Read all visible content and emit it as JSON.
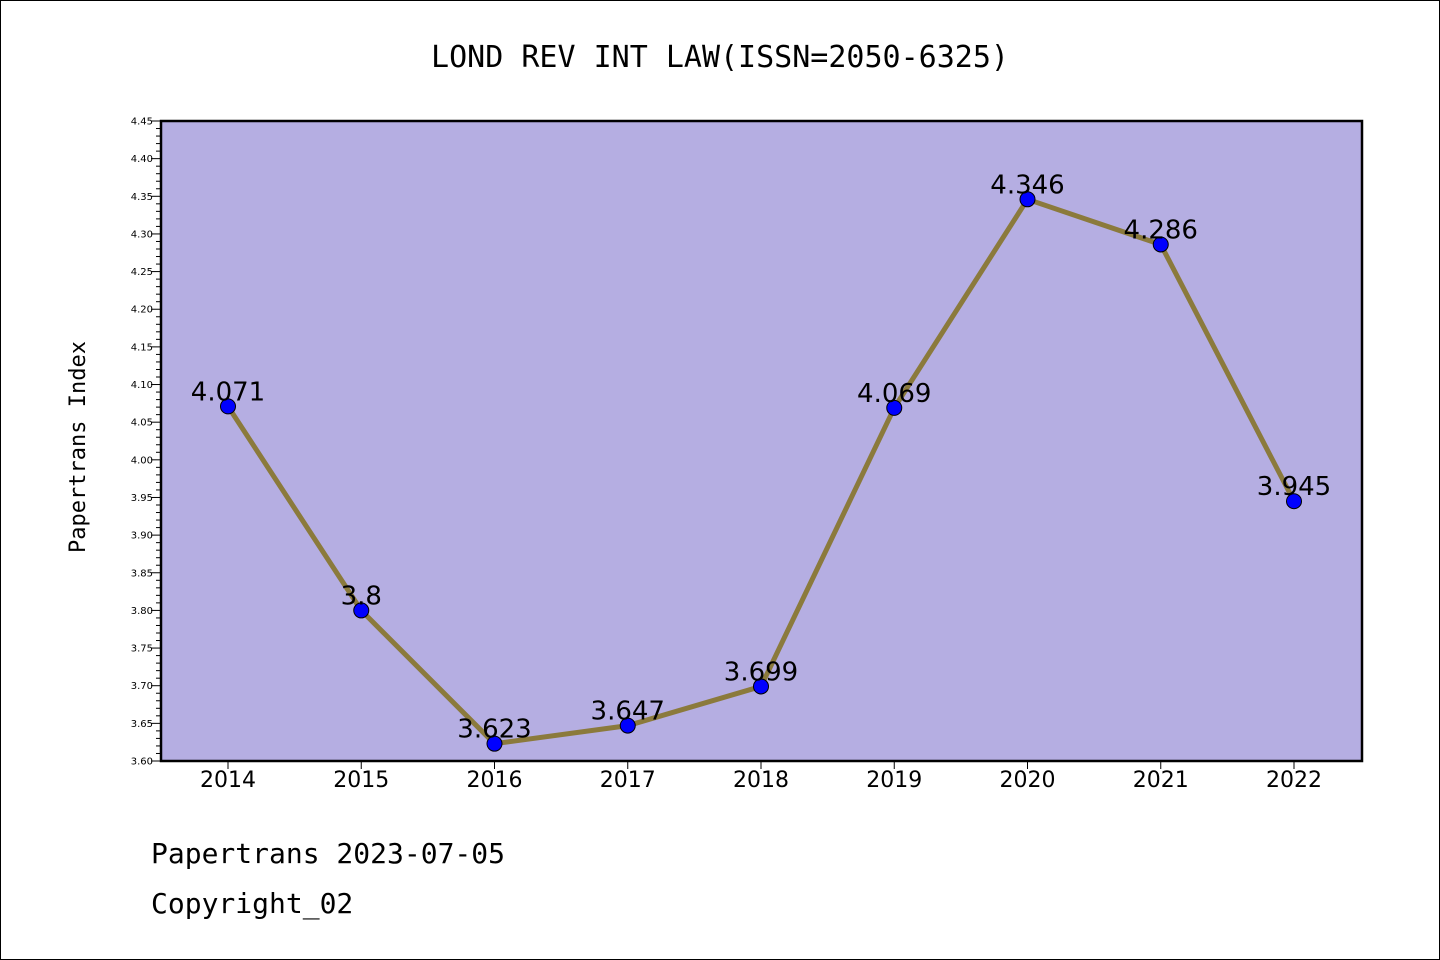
{
  "chart_data": {
    "type": "line",
    "title": "LOND REV INT LAW(ISSN=2050-6325)",
    "ylabel": "Papertrans Index",
    "xlabel": "",
    "categories": [
      "2014",
      "2015",
      "2016",
      "2017",
      "2018",
      "2019",
      "2020",
      "2021",
      "2022"
    ],
    "series": [
      {
        "values": [
          4.071,
          3.8,
          3.623,
          3.647,
          3.699,
          4.069,
          4.346,
          4.286,
          3.945
        ],
        "labels": [
          "4.071",
          "3.8",
          "3.623",
          "3.647",
          "3.699",
          "4.069",
          "4.346",
          "4.286",
          "3.945"
        ]
      }
    ],
    "ylim": [
      3.6,
      4.45
    ],
    "yticks": [
      "3.60",
      "3.65",
      "3.70",
      "3.75",
      "3.80",
      "3.85",
      "3.90",
      "3.95",
      "4.00",
      "4.05",
      "4.10",
      "4.15",
      "4.20",
      "4.25",
      "4.30",
      "4.35",
      "4.40",
      "4.45"
    ],
    "grid": false,
    "colors": {
      "plot_background": "#b5aee2",
      "line": "#8b7a3c",
      "marker": "#0000ff"
    }
  },
  "footer": {
    "date_line": "Papertrans 2023-07-05",
    "copyright_line": "Copyright_02"
  }
}
